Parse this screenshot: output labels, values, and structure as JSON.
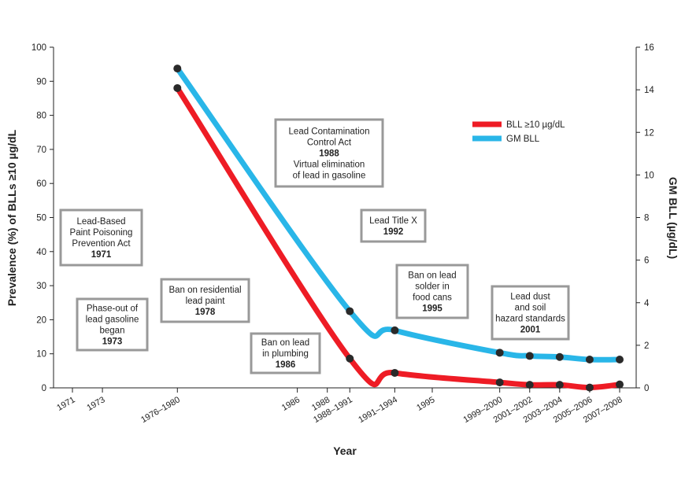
{
  "chart_data": {
    "type": "line",
    "xlabel": "Year",
    "ylabel_left": "Prevalence (%) of BLLs ≥10 µg/dL",
    "ylabel_right": "GM BLL (µg/dL)",
    "left_ylim": [
      0,
      100
    ],
    "left_ticks": [
      "0",
      "10",
      "20",
      "30",
      "40",
      "50",
      "60",
      "70",
      "80",
      "90",
      "100"
    ],
    "right_ylim": [
      0,
      16
    ],
    "right_ticks": [
      "0",
      "2",
      "4",
      "6",
      "8",
      "10",
      "12",
      "14",
      "16"
    ],
    "x_ticks": [
      {
        "label": "1971",
        "year": 1971
      },
      {
        "label": "1973",
        "year": 1973
      },
      {
        "label": "1976–1980",
        "year": 1978
      },
      {
        "label": "1986",
        "year": 1986
      },
      {
        "label": "1988",
        "year": 1988
      },
      {
        "label": "1988–1991",
        "year": 1989.5
      },
      {
        "label": "1991–1994",
        "year": 1992.5
      },
      {
        "label": "1995",
        "year": 1995
      },
      {
        "label": "1999–2000",
        "year": 1999.5
      },
      {
        "label": "2001–2002",
        "year": 2001.5
      },
      {
        "label": "2003–2004",
        "year": 2003.5
      },
      {
        "label": "2005–2006",
        "year": 2005.5
      },
      {
        "label": "2007–2008",
        "year": 2007.5
      }
    ],
    "series": [
      {
        "name": "BLL ≥10 µg/dL",
        "axis": "left",
        "color": "#ee1c25",
        "x": [
          "1976–1980",
          "1988–1991",
          "1991–1994",
          "1999–2000",
          "2001–2002",
          "2003–2004",
          "2005–2006",
          "2007–2008"
        ],
        "values": [
          88,
          8.6,
          4.4,
          1.6,
          0.9,
          0.9,
          0.1,
          1.0
        ]
      },
      {
        "name": "GM BLL",
        "axis": "right",
        "color": "#29b6e8",
        "x": [
          "1976–1980",
          "1988–1991",
          "1991–1994",
          "1999–2000",
          "2001–2002",
          "2003–2004",
          "2005–2006",
          "2007–2008"
        ],
        "values": [
          15.0,
          3.6,
          2.7,
          1.65,
          1.5,
          1.45,
          1.33,
          1.33
        ]
      }
    ],
    "legend_position": "top-right",
    "annotations": [
      {
        "lines": [
          "Lead-Based",
          "Paint Poisoning",
          "Prevention Act"
        ],
        "year": "1971"
      },
      {
        "lines": [
          "Phase-out of",
          "lead gasoline",
          "began"
        ],
        "year": "1973"
      },
      {
        "lines": [
          "Ban on residential",
          "lead paint"
        ],
        "year": "1978"
      },
      {
        "lines": [
          "Ban on lead",
          "in plumbing"
        ],
        "year": "1986"
      },
      {
        "lines": [
          "Lead Contamination",
          "Control Act"
        ],
        "year": "1988",
        "extra": [
          "Virtual elimination",
          "of lead in gasoline"
        ]
      },
      {
        "lines": [
          "Lead Title X"
        ],
        "year": "1992"
      },
      {
        "lines": [
          "Ban on lead",
          "solder in",
          "food cans"
        ],
        "year": "1995"
      },
      {
        "lines": [
          "Lead dust",
          "and soil",
          "hazard standards"
        ],
        "year": "2001"
      }
    ]
  }
}
